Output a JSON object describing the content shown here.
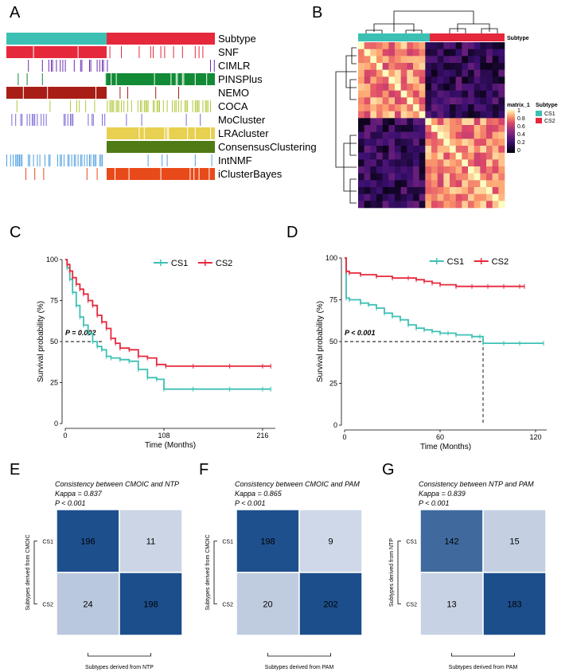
{
  "colors": {
    "cs1": "#3cc0b4",
    "cs2": "#e6283c"
  },
  "panel_labels": [
    "A",
    "B",
    "C",
    "D",
    "E",
    "F",
    "G"
  ],
  "panel_a": {
    "tracks": [
      "Subtype",
      "SNF",
      "CIMLR",
      "PINSPlus",
      "NEMO",
      "COCA",
      "MoCluster",
      "LRAcluster",
      "ConsensusClustering",
      "IntNMF",
      "iClusterBayes"
    ],
    "track_colors": [
      "#e6283c",
      "#e6283c",
      "#6a2bb0",
      "#128a36",
      "#a81e16",
      "#b4c83c",
      "#7b68d8",
      "#e8d050",
      "#4f7a14",
      "#4fa0e0",
      "#e84a1a"
    ]
  },
  "panel_b": {
    "legend_title": "matrix_1",
    "ticks": [
      "1",
      "0.8",
      "0.6",
      "0.4",
      "0.2",
      "0"
    ],
    "subtype_legend_title": "Subtype",
    "subtype_items": [
      "CS1",
      "CS2"
    ],
    "annotation_label": "Subtype"
  },
  "chart_data": [
    {
      "panel": "C",
      "type": "line",
      "xlabel": "Time (Months)",
      "ylabel": "Survival probability (%)",
      "xticks": [
        "0",
        "108",
        "216"
      ],
      "yticks": [
        "0",
        "25",
        "50",
        "75",
        "100"
      ],
      "xlim": [
        0,
        230
      ],
      "ylim": [
        0,
        100
      ],
      "legend": [
        "CS1",
        "CS2"
      ],
      "pvalue": "P = 0.002",
      "series": [
        {
          "name": "CS1",
          "x": [
            0,
            2,
            5,
            8,
            12,
            16,
            20,
            25,
            30,
            35,
            40,
            45,
            50,
            60,
            70,
            80,
            90,
            100,
            108,
            140,
            180,
            216,
            225
          ],
          "y": [
            100,
            95,
            88,
            80,
            72,
            65,
            60,
            55,
            50,
            47,
            45,
            41,
            40,
            39,
            38,
            33,
            28,
            27,
            21,
            21,
            21,
            21,
            21
          ]
        },
        {
          "name": "CS2",
          "x": [
            0,
            2,
            5,
            8,
            12,
            16,
            20,
            25,
            30,
            35,
            40,
            45,
            50,
            55,
            60,
            70,
            80,
            90,
            100,
            110,
            140,
            180,
            216,
            225
          ],
          "y": [
            100,
            97,
            93,
            89,
            85,
            82,
            79,
            75,
            72,
            66,
            62,
            58,
            52,
            49,
            46,
            45,
            41,
            40,
            36,
            35,
            35,
            35,
            35,
            35
          ]
        }
      ]
    },
    {
      "panel": "D",
      "type": "line",
      "xlabel": "Time (Months)",
      "ylabel": "Survival probability (%)",
      "xticks": [
        "0",
        "60",
        "120"
      ],
      "yticks": [
        "0",
        "25",
        "50",
        "75",
        "100"
      ],
      "xlim": [
        0,
        127
      ],
      "ylim": [
        0,
        100
      ],
      "legend": [
        "CS1",
        "CS2"
      ],
      "pvalue": "P < 0.001",
      "median_x": 87,
      "series": [
        {
          "name": "CS1",
          "x": [
            0,
            1,
            3,
            10,
            15,
            20,
            25,
            30,
            35,
            40,
            45,
            50,
            55,
            60,
            65,
            70,
            80,
            85,
            87,
            100,
            110,
            125
          ],
          "y": [
            100,
            76,
            75,
            73,
            72,
            70,
            67,
            65,
            63,
            60,
            58,
            57,
            56,
            55,
            55,
            54,
            53,
            53,
            49,
            49,
            49,
            49
          ]
        },
        {
          "name": "CS2",
          "x": [
            0,
            1,
            3,
            10,
            20,
            30,
            40,
            45,
            50,
            55,
            60,
            70,
            80,
            90,
            100,
            110,
            113
          ],
          "y": [
            100,
            92,
            91,
            90,
            89,
            88,
            88,
            87,
            86,
            85,
            84,
            83,
            83,
            83,
            83,
            83,
            83
          ]
        }
      ]
    },
    {
      "panel": "E",
      "type": "heatmap",
      "title": "Consistency between CMOIC and NTP",
      "kappa": "Kappa = 0.837",
      "pvalue": "P < 0.001",
      "xlabel": "Subtypes derived from NTP",
      "ylabel": "Subtypes derived from CMOIC",
      "categories": [
        "CS1",
        "CS2"
      ],
      "matrix": [
        [
          196,
          11
        ],
        [
          24,
          198
        ]
      ]
    },
    {
      "panel": "F",
      "type": "heatmap",
      "title": "Consistency between CMOIC and PAM",
      "kappa": "Kappa = 0.865",
      "pvalue": "P < 0.001",
      "xlabel": "Subtypes derived from PAM",
      "ylabel": "Subtypes derived from CMOIC",
      "categories": [
        "CS1",
        "CS2"
      ],
      "matrix": [
        [
          198,
          9
        ],
        [
          20,
          202
        ]
      ]
    },
    {
      "panel": "G",
      "type": "heatmap",
      "title": "Consistency between NTP and PAM",
      "kappa": "Kappa = 0.839",
      "pvalue": "P < 0.001",
      "xlabel": "Subtypes derived from PAM",
      "ylabel": "Subtypes derived from NTP",
      "categories": [
        "CS1",
        "CS2"
      ],
      "matrix": [
        [
          142,
          15
        ],
        [
          13,
          183
        ]
      ]
    }
  ]
}
